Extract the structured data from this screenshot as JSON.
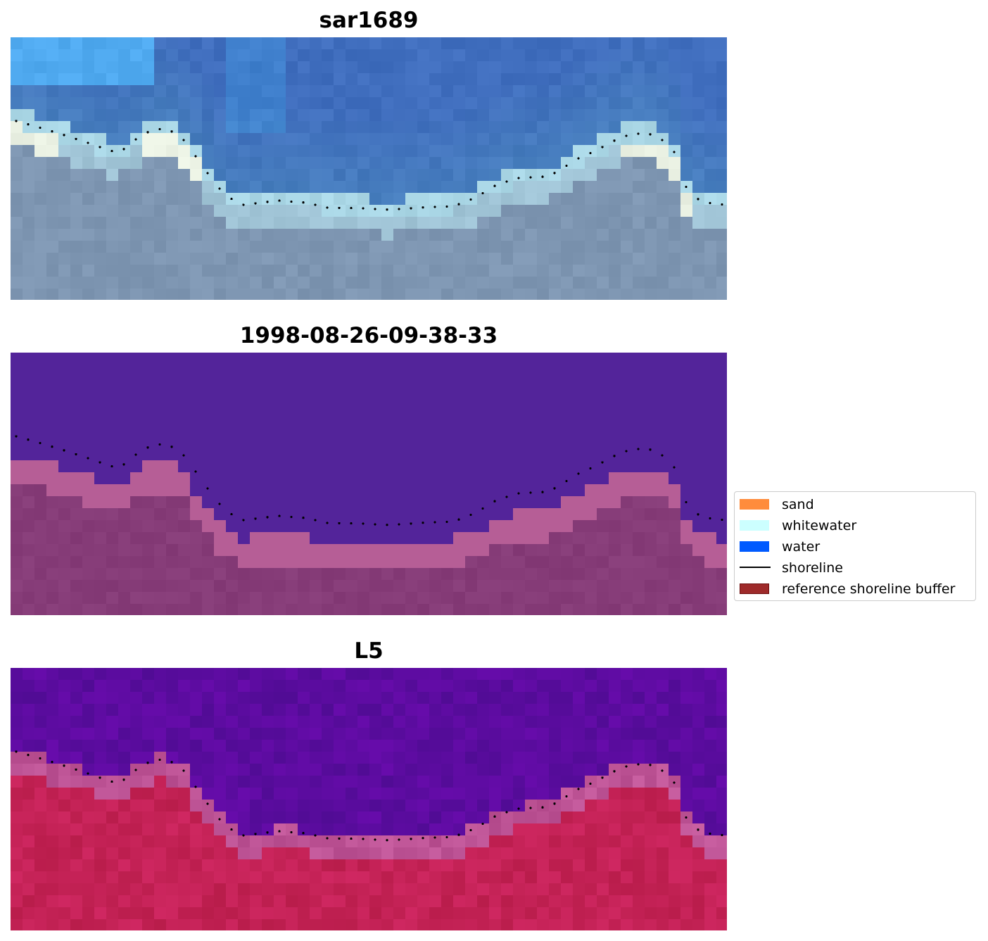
{
  "panels": [
    {
      "title": "sar1689",
      "kind": "rgb"
    },
    {
      "title": "1998-08-26-09-38-33",
      "kind": "classified"
    },
    {
      "title": "L5",
      "kind": "index"
    }
  ],
  "legend": {
    "items": [
      {
        "label": "sand",
        "type": "patch",
        "color": "#ff8c3c"
      },
      {
        "label": "whitewater",
        "type": "patch",
        "color": "#ccffff"
      },
      {
        "label": "water",
        "type": "patch",
        "color": "#005aff"
      },
      {
        "label": "shoreline",
        "type": "line",
        "color": "#000000"
      },
      {
        "label": "reference shoreline buffer",
        "type": "patch",
        "color": "#9e2a2a",
        "edge": "#6e1010"
      }
    ]
  },
  "colors": {
    "rgb_sky": "#4a7fc0",
    "rgb_land": "#7f9ab5",
    "classified_water": "#53249a",
    "classified_land": "#843c78",
    "index_water": "#5a0a9c",
    "index_land": "#c41e54",
    "shoreline_dots": "#000000"
  }
}
